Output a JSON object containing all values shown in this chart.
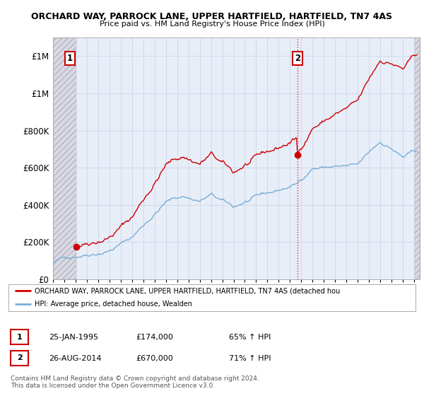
{
  "title_line1": "ORCHARD WAY, PARROCK LANE, UPPER HARTFIELD, HARTFIELD, TN7 4AS",
  "title_line2": "Price paid vs. HM Land Registry's House Price Index (HPI)",
  "ylim": [
    0,
    1300000
  ],
  "yticks": [
    0,
    200000,
    400000,
    600000,
    800000,
    1000000,
    1200000
  ],
  "xlim_start": 1993,
  "xlim_end": 2025.5,
  "sale1_year": 1995.07,
  "sale1_price": 174000,
  "sale2_year": 2014.65,
  "sale2_price": 670000,
  "legend_line1": "ORCHARD WAY, PARROCK LANE, UPPER HARTFIELD, HARTFIELD, TN7 4AS (detached hou",
  "legend_line2": "HPI: Average price, detached house, Wealden",
  "footer": "Contains HM Land Registry data © Crown copyright and database right 2024.\nThis data is licensed under the Open Government Licence v3.0.",
  "table_row1_date": "25-JAN-1995",
  "table_row1_price": "£174,000",
  "table_row1_hpi": "65% ↑ HPI",
  "table_row2_date": "26-AUG-2014",
  "table_row2_price": "£670,000",
  "table_row2_hpi": "71% ↑ HPI",
  "property_color": "#cc0000",
  "hpi_color": "#7aaed6",
  "grid_color": "#d0d8e8",
  "bg_color": "#e8eef8",
  "hatch_bg": "#d8d8e0"
}
